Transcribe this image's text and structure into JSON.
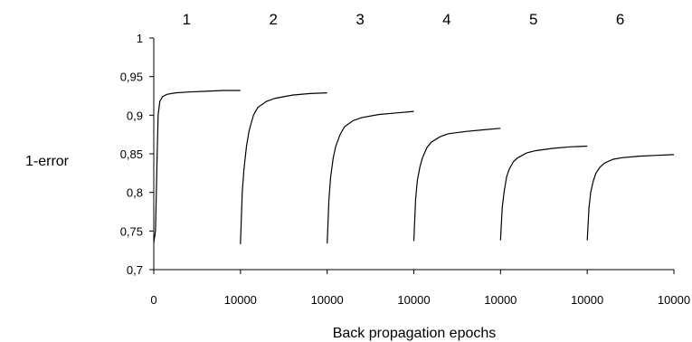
{
  "chart_data": {
    "type": "line",
    "title": "",
    "xlabel": "Back propagation epochs",
    "ylabel": "1-error",
    "ylim": [
      0.7,
      1.0
    ],
    "y_ticks": [
      "0,7",
      "0,75",
      "0,8",
      "0,85",
      "0,9",
      "0,95",
      "1"
    ],
    "x_ticks": [
      "0",
      "10000",
      "10000",
      "10000",
      "10000",
      "10000",
      "10000"
    ],
    "x_per_panel": [
      0,
      10000
    ],
    "grid": false,
    "legend": "none",
    "panels": [
      {
        "label": "1",
        "points": [
          [
            0,
            0.735
          ],
          [
            200,
            0.75
          ],
          [
            350,
            0.83
          ],
          [
            500,
            0.9
          ],
          [
            700,
            0.918
          ],
          [
            1000,
            0.924
          ],
          [
            1500,
            0.927
          ],
          [
            2500,
            0.929
          ],
          [
            4000,
            0.93
          ],
          [
            6000,
            0.931
          ],
          [
            8000,
            0.932
          ],
          [
            10000,
            0.932
          ]
        ]
      },
      {
        "label": "2",
        "points": [
          [
            0,
            0.733
          ],
          [
            200,
            0.8
          ],
          [
            400,
            0.83
          ],
          [
            700,
            0.86
          ],
          [
            1000,
            0.88
          ],
          [
            1500,
            0.9
          ],
          [
            2000,
            0.91
          ],
          [
            3000,
            0.918
          ],
          [
            4000,
            0.922
          ],
          [
            6000,
            0.926
          ],
          [
            8000,
            0.928
          ],
          [
            10000,
            0.929
          ]
        ]
      },
      {
        "label": "3",
        "points": [
          [
            0,
            0.734
          ],
          [
            200,
            0.79
          ],
          [
            400,
            0.82
          ],
          [
            700,
            0.845
          ],
          [
            1000,
            0.86
          ],
          [
            1500,
            0.875
          ],
          [
            2000,
            0.885
          ],
          [
            3000,
            0.893
          ],
          [
            4000,
            0.897
          ],
          [
            6000,
            0.901
          ],
          [
            8000,
            0.903
          ],
          [
            10000,
            0.905
          ]
        ]
      },
      {
        "label": "4",
        "points": [
          [
            0,
            0.737
          ],
          [
            200,
            0.79
          ],
          [
            400,
            0.815
          ],
          [
            700,
            0.833
          ],
          [
            1000,
            0.845
          ],
          [
            1500,
            0.858
          ],
          [
            2000,
            0.865
          ],
          [
            3000,
            0.872
          ],
          [
            4000,
            0.876
          ],
          [
            6000,
            0.879
          ],
          [
            8000,
            0.881
          ],
          [
            10000,
            0.883
          ]
        ]
      },
      {
        "label": "5",
        "points": [
          [
            0,
            0.738
          ],
          [
            200,
            0.78
          ],
          [
            400,
            0.8
          ],
          [
            700,
            0.82
          ],
          [
            1000,
            0.83
          ],
          [
            1500,
            0.84
          ],
          [
            2000,
            0.845
          ],
          [
            3000,
            0.851
          ],
          [
            4000,
            0.854
          ],
          [
            6000,
            0.857
          ],
          [
            8000,
            0.859
          ],
          [
            10000,
            0.86
          ]
        ]
      },
      {
        "label": "6",
        "points": [
          [
            0,
            0.738
          ],
          [
            200,
            0.78
          ],
          [
            400,
            0.8
          ],
          [
            700,
            0.815
          ],
          [
            1000,
            0.825
          ],
          [
            1500,
            0.833
          ],
          [
            2000,
            0.838
          ],
          [
            3000,
            0.843
          ],
          [
            4000,
            0.845
          ],
          [
            6000,
            0.847
          ],
          [
            8000,
            0.848
          ],
          [
            10000,
            0.849
          ]
        ]
      }
    ]
  }
}
